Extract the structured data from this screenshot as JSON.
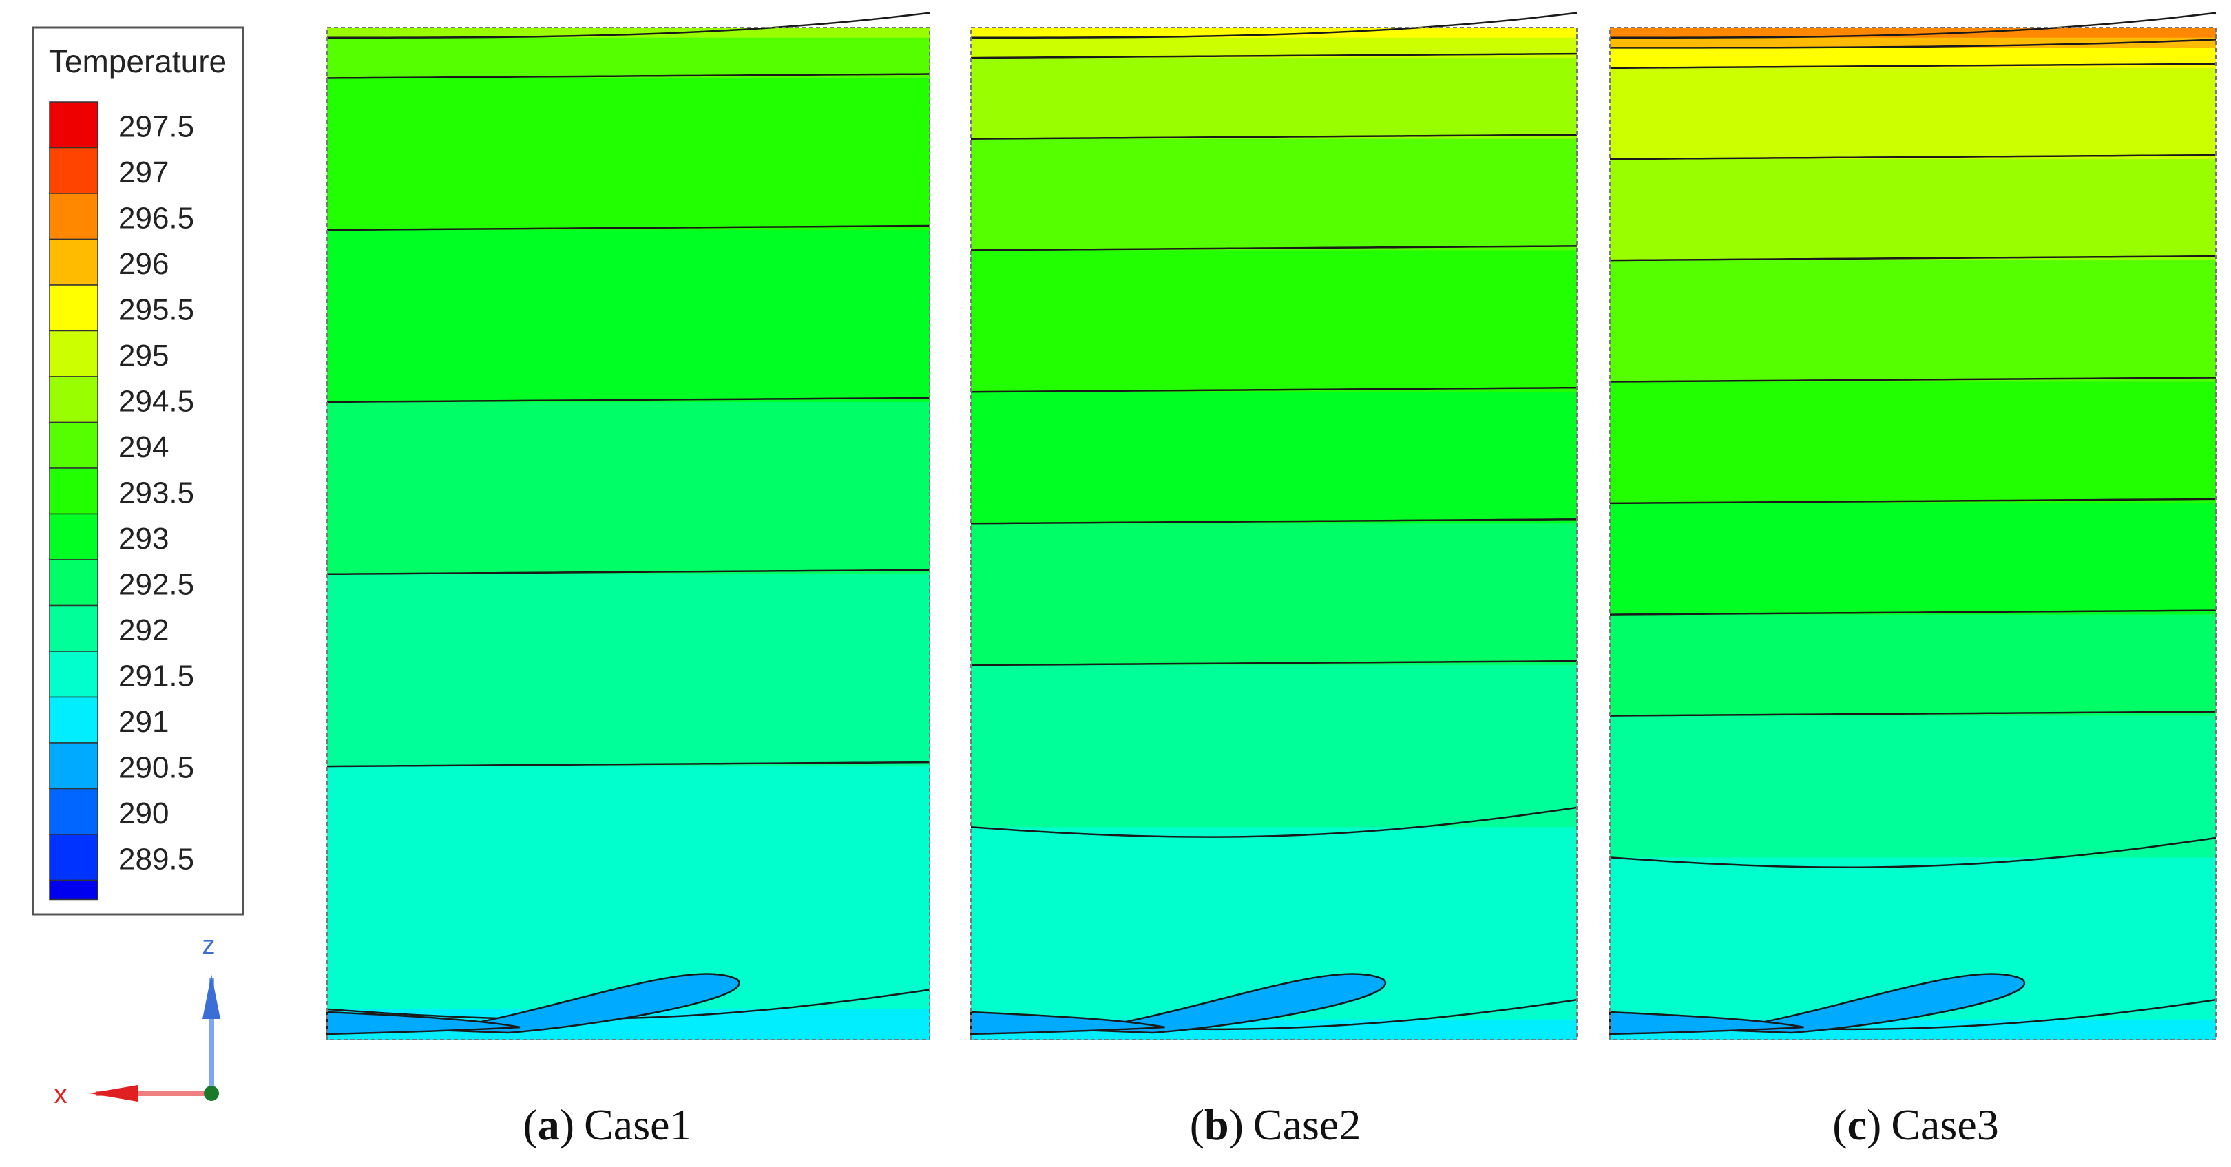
{
  "legend": {
    "title": "Temperature",
    "levels": [
      {
        "label": "297.5",
        "color": "#ee0000"
      },
      {
        "label": "297",
        "color": "#ff4400"
      },
      {
        "label": "296.5",
        "color": "#ff8800"
      },
      {
        "label": "296",
        "color": "#ffbb00"
      },
      {
        "label": "295.5",
        "color": "#ffff00"
      },
      {
        "label": "295",
        "color": "#ccff00"
      },
      {
        "label": "294.5",
        "color": "#99ff00"
      },
      {
        "label": "294",
        "color": "#55ff00"
      },
      {
        "label": "293.5",
        "color": "#22ff00"
      },
      {
        "label": "293",
        "color": "#00ff22"
      },
      {
        "label": "292.5",
        "color": "#00ff66"
      },
      {
        "label": "292",
        "color": "#00ff99"
      },
      {
        "label": "291.5",
        "color": "#00ffcc"
      },
      {
        "label": "291",
        "color": "#00eeff"
      },
      {
        "label": "290.5",
        "color": "#00aaff"
      },
      {
        "label": "290",
        "color": "#0066ff"
      },
      {
        "label": "289.5",
        "color": "#0033ff"
      }
    ],
    "bottom_color": "#0000ee"
  },
  "axes": {
    "vertical": "z",
    "horizontal": "x",
    "z_color": "#3b6fd6",
    "x_color": "#e02020",
    "origin_color": "#1a7a2a"
  },
  "chart_data": [
    {
      "type": "contour",
      "panel": "a",
      "name": "Case1",
      "variable": "Temperature",
      "bands_top_to_bottom": [
        {
          "temperature": 294.5,
          "depth_top": 0.0,
          "depth_bottom": 0.01
        },
        {
          "temperature": 294.0,
          "depth_top": 0.01,
          "depth_bottom": 0.05
        },
        {
          "temperature": 293.5,
          "depth_top": 0.05,
          "depth_bottom": 0.2
        },
        {
          "temperature": 293.0,
          "depth_top": 0.2,
          "depth_bottom": 0.37
        },
        {
          "temperature": 292.5,
          "depth_top": 0.37,
          "depth_bottom": 0.54
        },
        {
          "temperature": 292.0,
          "depth_top": 0.54,
          "depth_bottom": 0.73
        },
        {
          "temperature": 291.5,
          "depth_top": 0.73,
          "depth_bottom": 0.97
        },
        {
          "temperature": 291.0,
          "depth_top": 0.97,
          "depth_bottom": 1.0
        }
      ]
    },
    {
      "type": "contour",
      "panel": "b",
      "name": "Case2",
      "variable": "Temperature",
      "bands_top_to_bottom": [
        {
          "temperature": 295.5,
          "depth_top": 0.0,
          "depth_bottom": 0.01
        },
        {
          "temperature": 295.0,
          "depth_top": 0.01,
          "depth_bottom": 0.03
        },
        {
          "temperature": 294.5,
          "depth_top": 0.03,
          "depth_bottom": 0.11
        },
        {
          "temperature": 294.0,
          "depth_top": 0.11,
          "depth_bottom": 0.22
        },
        {
          "temperature": 293.5,
          "depth_top": 0.22,
          "depth_bottom": 0.36
        },
        {
          "temperature": 293.0,
          "depth_top": 0.36,
          "depth_bottom": 0.49
        },
        {
          "temperature": 292.5,
          "depth_top": 0.49,
          "depth_bottom": 0.63
        },
        {
          "temperature": 292.0,
          "depth_top": 0.63,
          "depth_bottom": 0.79
        },
        {
          "temperature": 291.5,
          "depth_top": 0.79,
          "depth_bottom": 0.98
        },
        {
          "temperature": 291.0,
          "depth_top": 0.98,
          "depth_bottom": 1.0
        }
      ]
    },
    {
      "type": "contour",
      "panel": "c",
      "name": "Case3",
      "variable": "Temperature",
      "bands_top_to_bottom": [
        {
          "temperature": 296.5,
          "depth_top": 0.0,
          "depth_bottom": 0.01
        },
        {
          "temperature": 296.0,
          "depth_top": 0.01,
          "depth_bottom": 0.02
        },
        {
          "temperature": 295.5,
          "depth_top": 0.02,
          "depth_bottom": 0.04
        },
        {
          "temperature": 295.0,
          "depth_top": 0.04,
          "depth_bottom": 0.13
        },
        {
          "temperature": 294.5,
          "depth_top": 0.13,
          "depth_bottom": 0.23
        },
        {
          "temperature": 294.0,
          "depth_top": 0.23,
          "depth_bottom": 0.35
        },
        {
          "temperature": 293.5,
          "depth_top": 0.35,
          "depth_bottom": 0.47
        },
        {
          "temperature": 293.0,
          "depth_top": 0.47,
          "depth_bottom": 0.58
        },
        {
          "temperature": 292.5,
          "depth_top": 0.58,
          "depth_bottom": 0.68
        },
        {
          "temperature": 292.0,
          "depth_top": 0.68,
          "depth_bottom": 0.82
        },
        {
          "temperature": 291.5,
          "depth_top": 0.82,
          "depth_bottom": 0.98
        },
        {
          "temperature": 291.0,
          "depth_top": 0.98,
          "depth_bottom": 1.0
        }
      ]
    }
  ],
  "captions": [
    {
      "letter": "a",
      "open": "(",
      "close": ")",
      "name": "Case1"
    },
    {
      "letter": "b",
      "open": "(",
      "close": ")",
      "name": "Case2"
    },
    {
      "letter": "c",
      "open": "(",
      "close": ")",
      "name": "Case3"
    }
  ]
}
